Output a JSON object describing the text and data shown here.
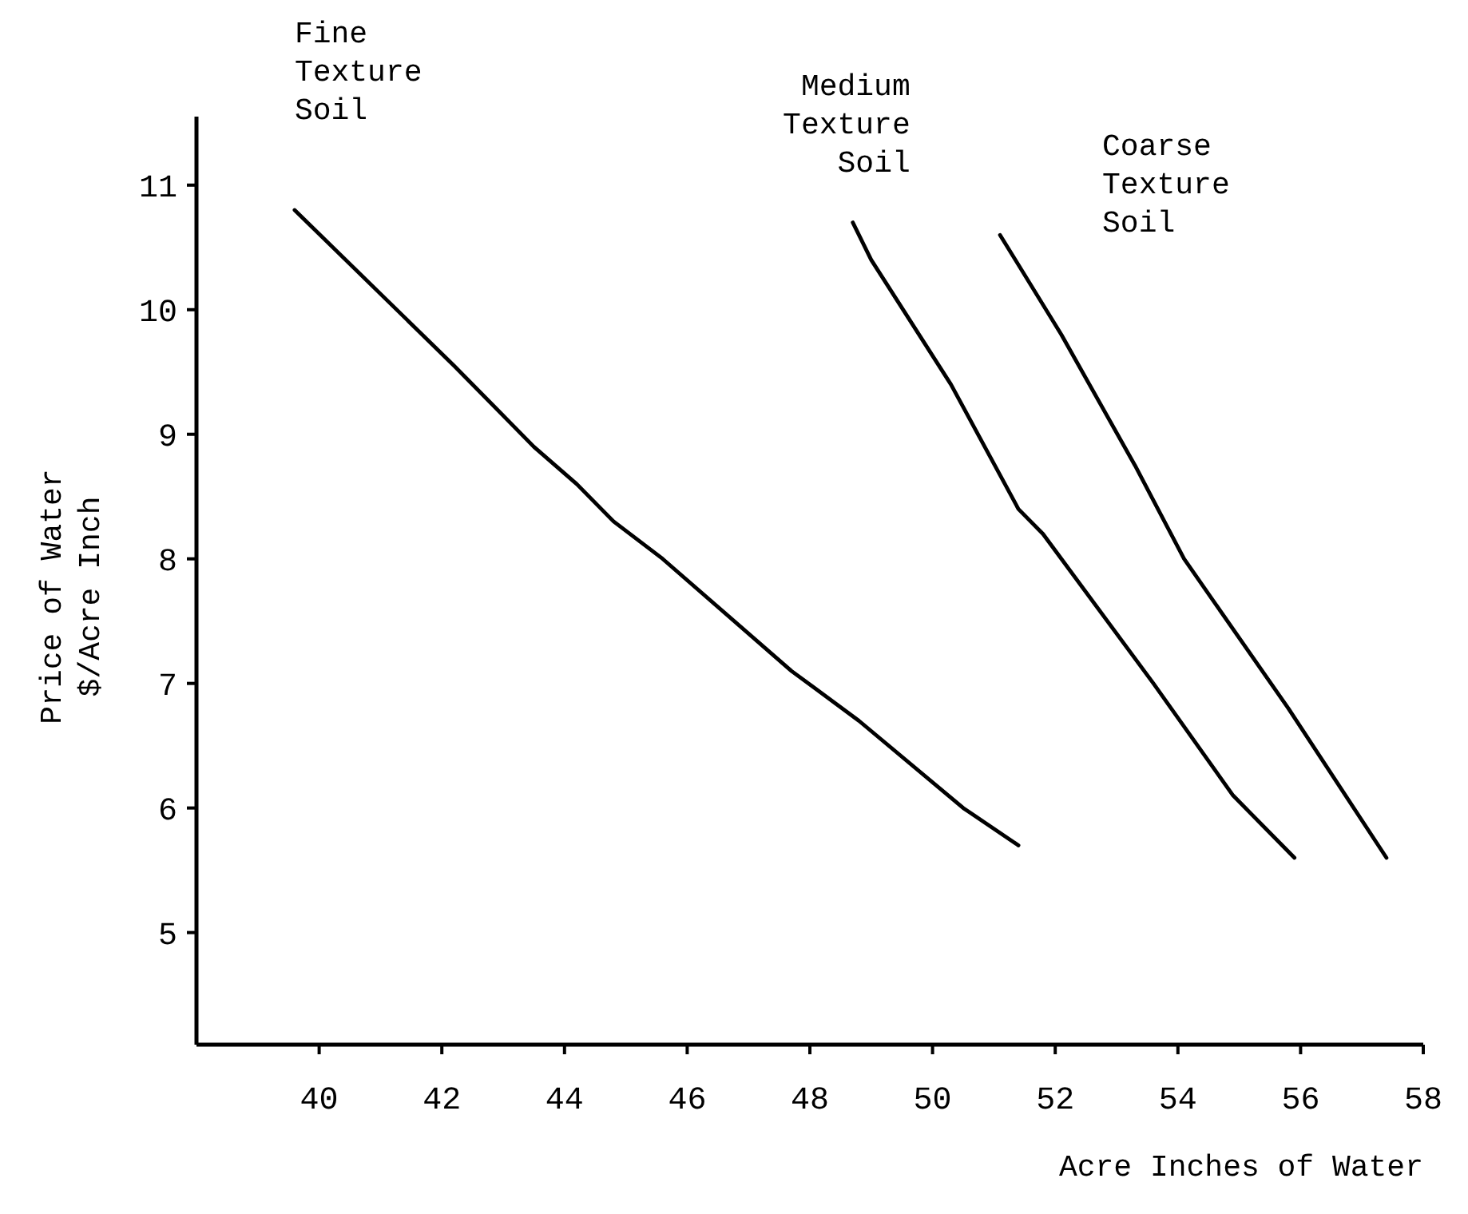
{
  "chart_data": {
    "type": "line",
    "xlabel": "Acre Inches of Water",
    "ylabel": "Price of Water\n$/Acre Inch",
    "xlim": [
      38,
      58
    ],
    "ylim": [
      4.1,
      11.55
    ],
    "xticks": [
      40,
      42,
      44,
      46,
      48,
      50,
      52,
      54,
      56,
      58
    ],
    "yticks": [
      5,
      6,
      7,
      8,
      9,
      10,
      11
    ],
    "grid": false,
    "marker": "none",
    "line_style": "solid",
    "series": [
      {
        "name": "Fine Texture Soil",
        "color": "#000000",
        "x": [
          39.6,
          42.2,
          43.5,
          44.2,
          44.8,
          45.6,
          47.7,
          48.8,
          50.5,
          51.4
        ],
        "values": [
          10.8,
          9.55,
          8.9,
          8.6,
          8.3,
          8.0,
          7.1,
          6.7,
          6.0,
          5.7
        ]
      },
      {
        "name": "Medium Texture Soil",
        "color": "#000000",
        "x": [
          48.7,
          49.0,
          50.3,
          51.4,
          51.8,
          53.6,
          54.9,
          55.9
        ],
        "values": [
          10.7,
          10.4,
          9.4,
          8.4,
          8.2,
          7.0,
          6.1,
          5.6
        ]
      },
      {
        "name": "Coarse Texture Soil",
        "color": "#000000",
        "x": [
          51.1,
          52.1,
          53.3,
          54.1,
          55.8,
          57.4
        ],
        "values": [
          10.6,
          9.8,
          8.75,
          8.0,
          6.8,
          5.6
        ]
      }
    ]
  }
}
